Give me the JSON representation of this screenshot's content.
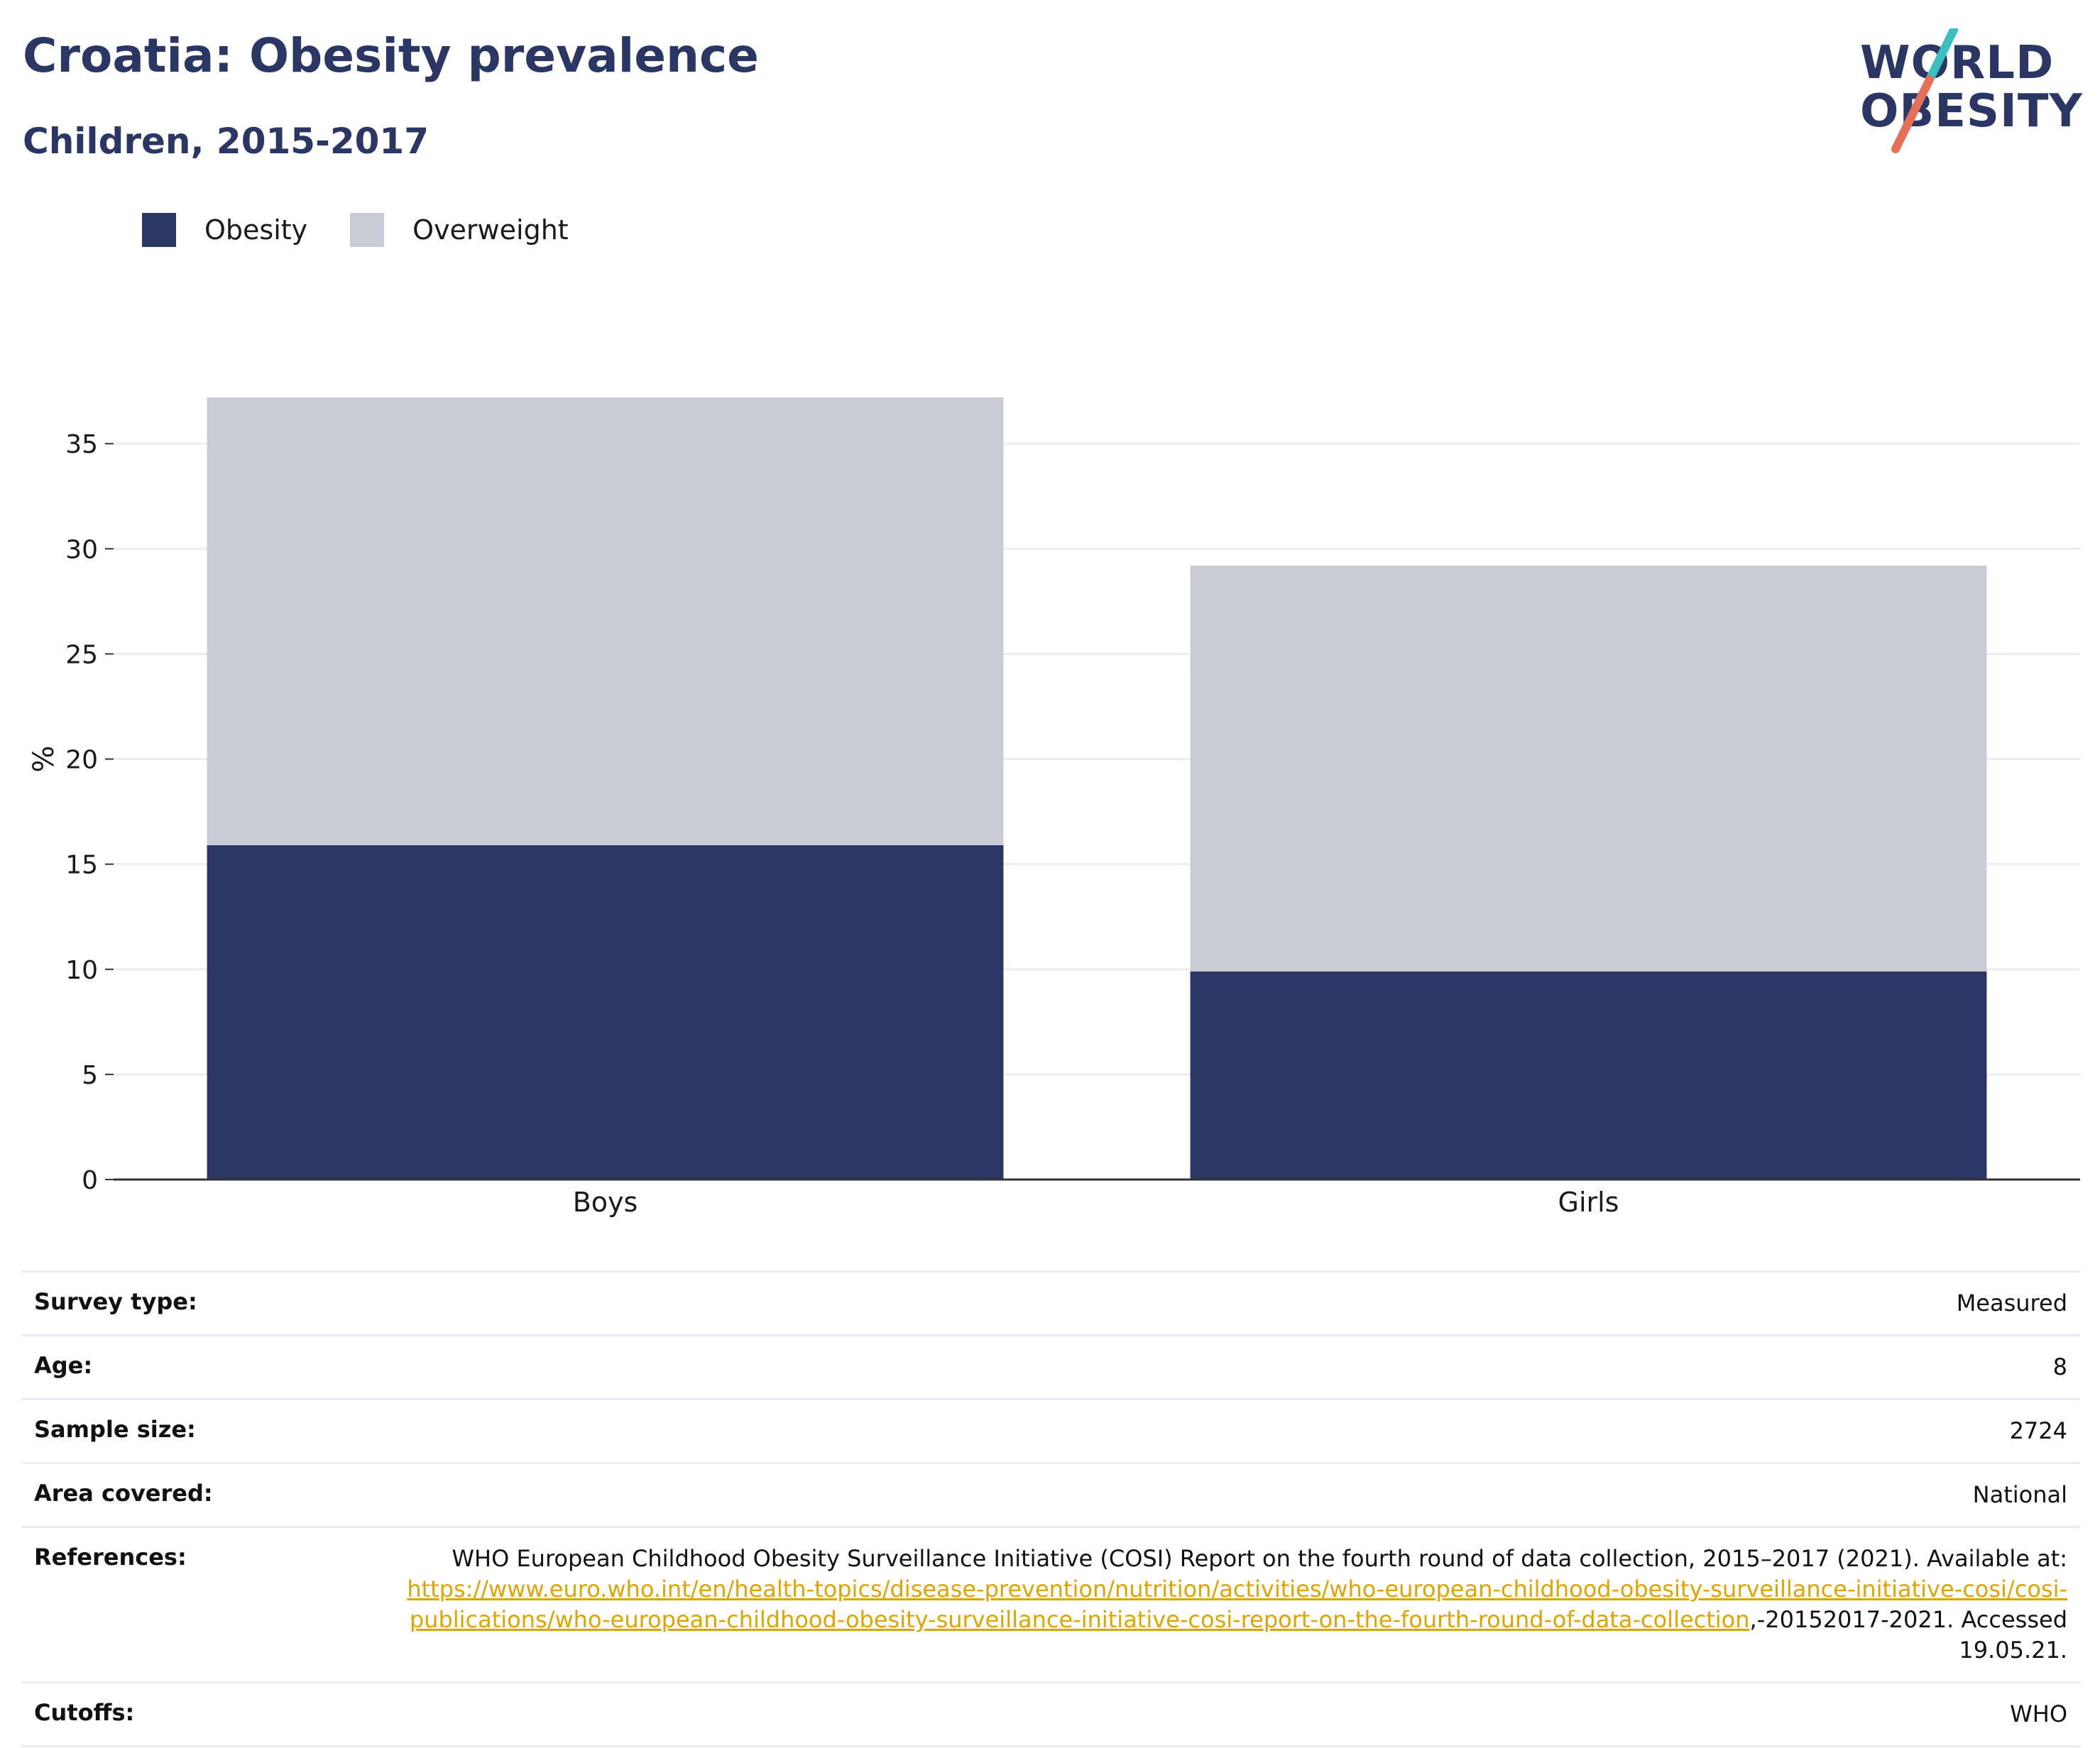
{
  "title": "Croatia: Obesity prevalence",
  "subtitle": "Children, 2015-2017",
  "logo": {
    "line1": "WORLD",
    "line2": "OBESITY",
    "accent_top": "#3bbfbf",
    "accent_bottom": "#e4705a"
  },
  "legend": [
    {
      "label": "Obesity",
      "color": "#2a3663"
    },
    {
      "label": "Overweight",
      "color": "#c9ccd7"
    }
  ],
  "chart_data": {
    "type": "bar",
    "stacked": true,
    "categories": [
      "Boys",
      "Girls"
    ],
    "series": [
      {
        "name": "Obesity",
        "values": [
          15.9,
          9.9
        ],
        "color": "#2a3663"
      },
      {
        "name": "Overweight",
        "values": [
          21.3,
          19.3
        ],
        "color": "#c9ccd7"
      }
    ],
    "ylabel": "%",
    "ylim": [
      0,
      37.2
    ],
    "yticks": [
      0,
      5,
      10,
      15,
      20,
      25,
      30,
      35
    ],
    "grid": true,
    "legend_position": "top-left"
  },
  "info": {
    "survey_type": {
      "label": "Survey type:",
      "value": "Measured"
    },
    "age": {
      "label": "Age:",
      "value": "8"
    },
    "sample_size": {
      "label": "Sample size:",
      "value": "2724"
    },
    "area_covered": {
      "label": "Area covered:",
      "value": "National"
    },
    "references": {
      "label": "References:",
      "text_before": "WHO European Childhood Obesity Surveillance Initiative (COSI) Report on the fourth round of data collection, 2015–2017 (2021). Available at: ",
      "link": "https://www.euro.who.int/en/health-topics/disease-prevention/nutrition/activities/who-european-childhood-obesity-surveillance-initiative-cosi/cosi-publications/who-european-childhood-obesity-surveillance-initiative-cosi-report-on-the-fourth-round-of-data-collection",
      "text_after": ",-20152017-2021. Accessed 19.05.21."
    },
    "cutoffs": {
      "label": "Cutoffs:",
      "value": "WHO"
    }
  }
}
